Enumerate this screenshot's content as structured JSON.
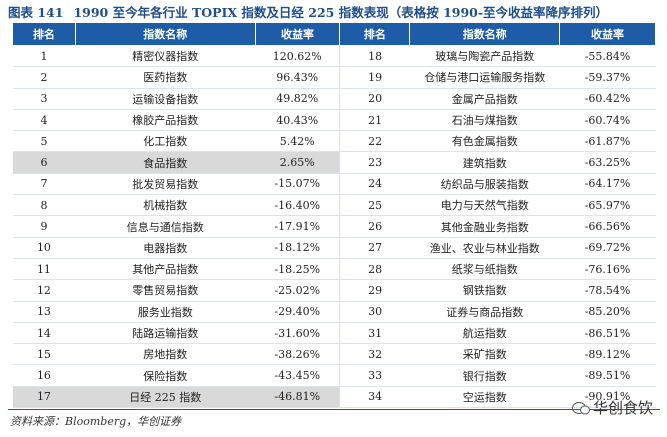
{
  "header": {
    "label": "图表 141",
    "title": "1990 至今年各行业 TOPIX 指数及日经 225 指数表现（表格按 1990-至今收益率降序排列）"
  },
  "table": {
    "columns": [
      "排名",
      "指数名称",
      "收益率",
      "排名",
      "指数名称",
      "收益率"
    ],
    "rows": [
      [
        "1",
        "精密仪器指数",
        "120.62%",
        "18",
        "玻璃与陶瓷产品指数",
        "-55.84%"
      ],
      [
        "2",
        "医药指数",
        "96.43%",
        "19",
        "仓储与港口运输服务指数",
        "-59.37%"
      ],
      [
        "3",
        "运输设备指数",
        "49.82%",
        "20",
        "金属产品指数",
        "-60.42%"
      ],
      [
        "4",
        "橡胶产品指数",
        "40.43%",
        "21",
        "石油与煤指数",
        "-60.74%"
      ],
      [
        "5",
        "化工指数",
        "5.42%",
        "22",
        "有色金属指数",
        "-61.87%"
      ],
      [
        "6",
        "食品指数",
        "2.65%",
        "23",
        "建筑指数",
        "-63.25%"
      ],
      [
        "7",
        "批发贸易指数",
        "-15.07%",
        "24",
        "纺织品与服装指数",
        "-64.17%"
      ],
      [
        "8",
        "机械指数",
        "-16.40%",
        "25",
        "电力与天然气指数",
        "-65.97%"
      ],
      [
        "9",
        "信息与通信指数",
        "-17.91%",
        "26",
        "其他金融业务指数",
        "-66.56%"
      ],
      [
        "10",
        "电器指数",
        "-18.12%",
        "27",
        "渔业、农业与林业指数",
        "-69.72%"
      ],
      [
        "11",
        "其他产品指数",
        "-18.25%",
        "28",
        "纸浆与纸指数",
        "-76.16%"
      ],
      [
        "12",
        "零售贸易指数",
        "-25.02%",
        "29",
        "钢铁指数",
        "-78.54%"
      ],
      [
        "13",
        "服务业指数",
        "-29.40%",
        "30",
        "证券与商品指数",
        "-85.20%"
      ],
      [
        "14",
        "陆路运输指数",
        "-31.60%",
        "31",
        "航运指数",
        "-86.51%"
      ],
      [
        "15",
        "房地指数",
        "-38.26%",
        "32",
        "采矿指数",
        "-89.12%"
      ],
      [
        "16",
        "保险指数",
        "-43.45%",
        "33",
        "银行指数",
        "-89.51%"
      ],
      [
        "17",
        "日经 225 指数",
        "-46.81%",
        "34",
        "空运指数",
        "-90.91%"
      ]
    ]
  },
  "source": "资料来源：Bloomberg，华创证券",
  "watermark": "华创食饮"
}
